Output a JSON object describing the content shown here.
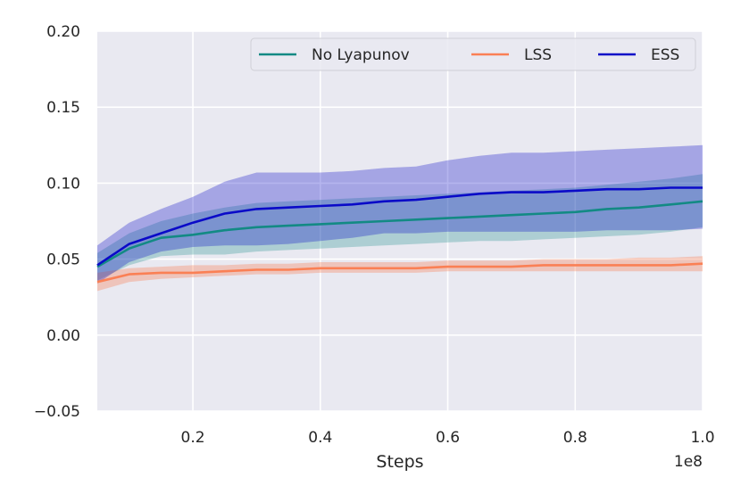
{
  "chart_data": {
    "type": "line",
    "xlabel": "Steps",
    "ylabel": "",
    "x_offset_label": "1e8",
    "xlim": [
      0.05,
      1.0
    ],
    "ylim": [
      -0.05,
      0.2
    ],
    "xticks": [
      0.2,
      0.4,
      0.6,
      0.8,
      1.0
    ],
    "xtick_labels": [
      "0.2",
      "0.4",
      "0.6",
      "0.8",
      "1.0"
    ],
    "yticks": [
      -0.05,
      0.0,
      0.05,
      0.1,
      0.15,
      0.2
    ],
    "ytick_labels": [
      "−0.05",
      "0.00",
      "0.05",
      "0.10",
      "0.15",
      "0.20"
    ],
    "grid": true,
    "legend_placement": "top-right",
    "background": "#e9e9f1",
    "x": [
      0.05,
      0.1,
      0.15,
      0.2,
      0.25,
      0.3,
      0.35,
      0.4,
      0.45,
      0.5,
      0.55,
      0.6,
      0.65,
      0.7,
      0.75,
      0.8,
      0.85,
      0.9,
      0.95,
      1.0
    ],
    "series": [
      {
        "name": "No Lyapunov",
        "color": "#138a84",
        "values": [
          0.045,
          0.057,
          0.064,
          0.066,
          0.069,
          0.071,
          0.072,
          0.073,
          0.074,
          0.075,
          0.076,
          0.077,
          0.078,
          0.079,
          0.08,
          0.081,
          0.083,
          0.084,
          0.086,
          0.088
        ],
        "lower": [
          0.036,
          0.046,
          0.052,
          0.053,
          0.053,
          0.055,
          0.056,
          0.057,
          0.058,
          0.059,
          0.06,
          0.061,
          0.062,
          0.062,
          0.063,
          0.064,
          0.065,
          0.066,
          0.068,
          0.071
        ],
        "upper": [
          0.054,
          0.067,
          0.075,
          0.08,
          0.084,
          0.087,
          0.088,
          0.089,
          0.09,
          0.091,
          0.092,
          0.093,
          0.094,
          0.095,
          0.096,
          0.097,
          0.099,
          0.101,
          0.103,
          0.106
        ]
      },
      {
        "name": "LSS",
        "color": "#fa8055",
        "values": [
          0.035,
          0.04,
          0.041,
          0.041,
          0.042,
          0.043,
          0.043,
          0.044,
          0.044,
          0.044,
          0.044,
          0.045,
          0.045,
          0.045,
          0.046,
          0.046,
          0.046,
          0.046,
          0.046,
          0.047
        ],
        "lower": [
          0.029,
          0.035,
          0.037,
          0.038,
          0.039,
          0.04,
          0.04,
          0.041,
          0.041,
          0.041,
          0.041,
          0.042,
          0.042,
          0.042,
          0.042,
          0.042,
          0.042,
          0.042,
          0.042,
          0.042
        ],
        "upper": [
          0.041,
          0.044,
          0.045,
          0.046,
          0.046,
          0.047,
          0.047,
          0.048,
          0.048,
          0.048,
          0.048,
          0.049,
          0.049,
          0.049,
          0.05,
          0.05,
          0.05,
          0.051,
          0.051,
          0.052
        ]
      },
      {
        "name": "ESS",
        "color": "#0a0ac8",
        "values": [
          0.046,
          0.06,
          0.067,
          0.074,
          0.08,
          0.083,
          0.084,
          0.085,
          0.086,
          0.088,
          0.089,
          0.091,
          0.093,
          0.094,
          0.094,
          0.095,
          0.096,
          0.096,
          0.097,
          0.097
        ],
        "lower": [
          0.034,
          0.048,
          0.055,
          0.058,
          0.059,
          0.059,
          0.06,
          0.062,
          0.064,
          0.067,
          0.067,
          0.068,
          0.068,
          0.068,
          0.068,
          0.068,
          0.069,
          0.069,
          0.069,
          0.07
        ],
        "upper": [
          0.059,
          0.074,
          0.083,
          0.091,
          0.101,
          0.107,
          0.107,
          0.107,
          0.108,
          0.11,
          0.111,
          0.115,
          0.118,
          0.12,
          0.12,
          0.121,
          0.122,
          0.123,
          0.124,
          0.125
        ]
      }
    ]
  }
}
